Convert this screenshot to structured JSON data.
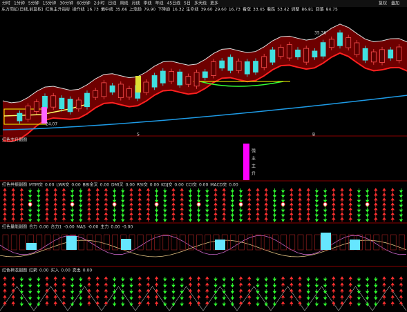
{
  "toolbar": {
    "items": [
      "分时",
      "1分钟",
      "5分钟",
      "15分钟",
      "30分钟",
      "60分钟",
      "2小时",
      "日线",
      "周线",
      "月线",
      "季线",
      "年线",
      "45日线",
      "5日",
      "多天线",
      "更多"
    ],
    "right": [
      "复权",
      "叠加"
    ]
  },
  "info": {
    "title": "东方雨虹(日线,前复权)",
    "indicator": "红色主升指标",
    "items": [
      {
        "label": "操作线",
        "value": "16.73",
        "color": "#ffffff"
      },
      {
        "label": "偏中线",
        "value": "35.66",
        "color": "#ff3333"
      },
      {
        "label": "上涨趋",
        "value": "79.90",
        "color": "#ffff00"
      },
      {
        "label": "下降趋",
        "value": "16.32",
        "color": "#33ffff"
      },
      {
        "label": "生命线",
        "value": "39.60",
        "color": "#ff9900"
      },
      {
        "label": "",
        "value": "29.60",
        "color": "#00ff00"
      },
      {
        "label": "",
        "value": "16.73",
        "color": "#ffffff"
      },
      {
        "label": "看涨",
        "value": "33.45",
        "color": "#ff3333"
      },
      {
        "label": "看跌",
        "value": "53.42",
        "color": "#00ff00"
      },
      {
        "label": "调整",
        "value": "86.81",
        "color": "#ffff00"
      },
      {
        "label": "回落",
        "value": "84.75",
        "color": "#ff44ff"
      }
    ]
  },
  "main": {
    "high_label": "35.36",
    "low_label": "24.07",
    "markers": [
      "S",
      "B"
    ]
  },
  "panels": [
    {
      "title": "红色主升副图",
      "items": [],
      "tags": [
        "强",
        "主",
        "主",
        "升"
      ]
    },
    {
      "title": "红色共振副图",
      "items": [
        {
          "label": "MTM交",
          "value": "0.00"
        },
        {
          "label": "LWR交",
          "value": "0.00"
        },
        {
          "label": "BBI金叉",
          "value": "0.00"
        },
        {
          "label": "DMI叉",
          "value": "0.00"
        },
        {
          "label": "RSI交",
          "value": "0.00"
        },
        {
          "label": "KDJ交",
          "value": "0.00"
        },
        {
          "label": "CCI交",
          "value": "0.00"
        },
        {
          "label": "MACD交",
          "value": "0.00"
        }
      ]
    },
    {
      "title": "红色量能副图",
      "items": [
        {
          "label": "合力",
          "value": "0.00"
        },
        {
          "label": "合力1",
          "value": "-0.00"
        },
        {
          "label": "MAS",
          "value": "-0.00"
        },
        {
          "label": "主力",
          "value": "0.00"
        },
        {
          "label": "",
          "value": "-0.00"
        }
      ]
    },
    {
      "title": "红色神龙副图",
      "items": [
        {
          "label": "红箭",
          "value": "0.00"
        },
        {
          "label": "买入",
          "value": "0.00"
        },
        {
          "label": "卖出",
          "value": "0.00"
        }
      ]
    }
  ]
}
